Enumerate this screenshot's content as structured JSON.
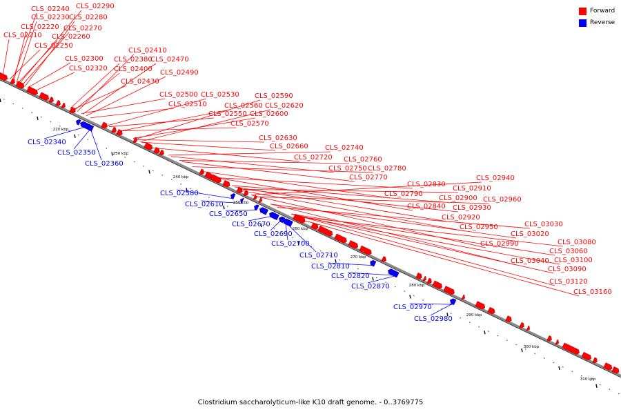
{
  "legend": {
    "forward_label": "Forward",
    "reverse_label": "Reverse",
    "forward_color": "#ff0000",
    "reverse_color": "#0000ff"
  },
  "caption": "Clostridium saccharolyticum-like K10 draft genome. - 0..3769775",
  "ruler_labels": [
    "220 kbp",
    "230 kbp",
    "240 kbp",
    "250 kbp",
    "260 kbp",
    "270 kbp",
    "280 kbp",
    "290 kbp",
    "300 kbp",
    "310 kbp"
  ],
  "forward_genes": [
    "CLS_02290",
    "CLS_02240",
    "CLS_02280",
    "CLS_02230",
    "CLS_02270",
    "CLS_02220",
    "CLS_02260",
    "CLS_02210",
    "CLS_02250",
    "CLS_02300",
    "CLS_02320",
    "CLS_02410",
    "CLS_02380",
    "CLS_02470",
    "CLS_02400",
    "CLS_02490",
    "CLS_02430",
    "CLS_02500",
    "CLS_02530",
    "CLS_02590",
    "CLS_02510",
    "CLS_02560",
    "CLS_02620",
    "CLS_02550",
    "CLS_02600",
    "CLS_02570",
    "CLS_02630",
    "CLS_02660",
    "CLS_02740",
    "CLS_02720",
    "CLS_02760",
    "CLS_02750",
    "CLS_02780",
    "CLS_02770",
    "CLS_02790",
    "CLS_02830",
    "CLS_02940",
    "CLS_02910",
    "CLS_02900",
    "CLS_02960",
    "CLS_02840",
    "CLS_02930",
    "CLS_02920",
    "CLS_02950",
    "CLS_03030",
    "CLS_03020",
    "CLS_02990",
    "CLS_03080",
    "CLS_03060",
    "CLS_03040",
    "CLS_03100",
    "CLS_03090",
    "CLS_03120",
    "CLS_03160"
  ],
  "reverse_genes": [
    "CLS_02340",
    "CLS_02350",
    "CLS_02360",
    "CLS_02580",
    "CLS_02610",
    "CLS_02650",
    "CLS_02670",
    "CLS_02690",
    "CLS_02700",
    "CLS_02710",
    "CLS_02810",
    "CLS_02820",
    "CLS_02870",
    "CLS_02970",
    "CLS_02980"
  ]
}
